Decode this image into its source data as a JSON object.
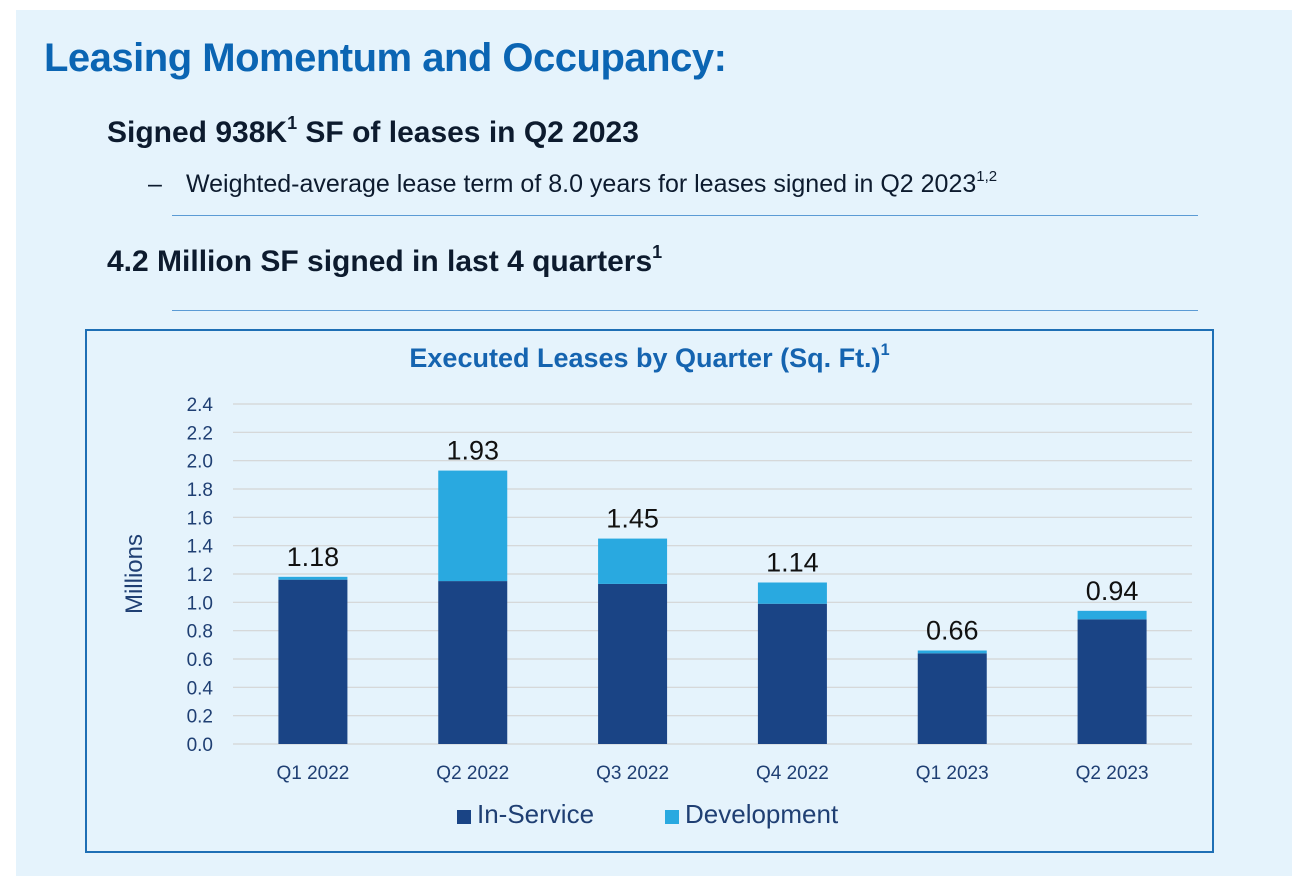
{
  "header": {
    "title": "Leasing Momentum and Occupancy:",
    "heading1": "Signed 938K",
    "heading1_sup": "1",
    "heading1_rest": " SF of leases in Q2 2023",
    "bullet_marker": "–",
    "bullet_text": "Weighted-average  lease term of 8.0 years for leases signed in Q2 2023",
    "bullet_sup": "1,2",
    "heading2": "4.2 Million SF signed in last 4 quarters",
    "heading2_sup": "1"
  },
  "chart_data": {
    "type": "bar",
    "stacked": true,
    "title": "Executed Leases by Quarter (Sq. Ft.)",
    "title_sup": "1",
    "ylabel": "Millions",
    "xlabel": "",
    "ylim": [
      0,
      2.4
    ],
    "yticks": [
      "0.0",
      "0.2",
      "0.4",
      "0.6",
      "0.8",
      "1.0",
      "1.2",
      "1.4",
      "1.6",
      "1.8",
      "2.0",
      "2.2",
      "2.4"
    ],
    "grid": true,
    "legend_position": "bottom",
    "categories": [
      "Q1 2022",
      "Q2 2022",
      "Q3 2022",
      "Q4 2022",
      "Q1 2023",
      "Q2 2023"
    ],
    "series": [
      {
        "name": "In-Service",
        "color": "#1a4485",
        "values": [
          1.16,
          1.15,
          1.13,
          0.99,
          0.64,
          0.88
        ]
      },
      {
        "name": "Development",
        "color": "#29a9e0",
        "values": [
          0.02,
          0.78,
          0.32,
          0.15,
          0.02,
          0.06
        ]
      }
    ],
    "totals": [
      "1.18",
      "1.93",
      "1.45",
      "1.14",
      "0.66",
      "0.94"
    ]
  }
}
